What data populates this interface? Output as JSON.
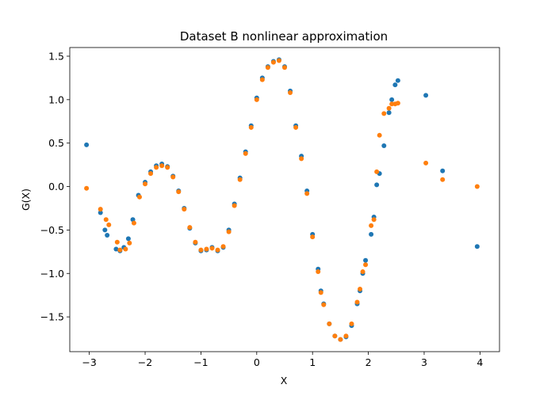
{
  "chart_data": {
    "type": "scatter",
    "title": "Dataset B nonlinear approximation",
    "xlabel": "X",
    "ylabel": "G(X)",
    "xlim": [
      -3.35,
      4.35
    ],
    "ylim": [
      -1.9,
      1.6
    ],
    "xticks": [
      -3,
      -2,
      -1,
      0,
      1,
      2,
      3,
      4
    ],
    "yticks": [
      -1.5,
      -1.0,
      -0.5,
      0.0,
      0.5,
      1.0,
      1.5
    ],
    "xtick_labels": [
      "−3",
      "−2",
      "−1",
      "0",
      "1",
      "2",
      "3",
      "4"
    ],
    "ytick_labels": [
      "−1.5",
      "−1.0",
      "−0.5",
      "0.0",
      "0.5",
      "1.0",
      "1.5"
    ],
    "grid": false,
    "legend": "none",
    "series": [
      {
        "color": "#1f77b4",
        "x": [
          -3.05,
          -2.8,
          -2.72,
          -2.68,
          -2.52,
          -2.45,
          -2.38,
          -2.3,
          -2.22,
          -2.12,
          -2.0,
          -1.9,
          -1.8,
          -1.7,
          -1.6,
          -1.5,
          -1.4,
          -1.3,
          -1.2,
          -1.1,
          -1.0,
          -0.9,
          -0.8,
          -0.7,
          -0.6,
          -0.5,
          -0.4,
          -0.3,
          -0.2,
          -0.1,
          0.0,
          0.1,
          0.2,
          0.3,
          0.4,
          0.5,
          0.6,
          0.7,
          0.8,
          0.9,
          1.0,
          1.1,
          1.15,
          1.2,
          1.3,
          1.4,
          1.5,
          1.6,
          1.7,
          1.8,
          1.85,
          1.9,
          1.95,
          2.05,
          2.1,
          2.15,
          2.2,
          2.28,
          2.37,
          2.42,
          2.48,
          2.53,
          3.03,
          3.33,
          3.95
        ],
        "y": [
          0.48,
          -0.3,
          -0.5,
          -0.56,
          -0.72,
          -0.74,
          -0.7,
          -0.6,
          -0.38,
          -0.1,
          0.05,
          0.17,
          0.24,
          0.26,
          0.23,
          0.12,
          -0.05,
          -0.25,
          -0.48,
          -0.65,
          -0.74,
          -0.73,
          -0.7,
          -0.74,
          -0.7,
          -0.5,
          -0.2,
          0.1,
          0.4,
          0.7,
          1.02,
          1.25,
          1.38,
          1.44,
          1.46,
          1.38,
          1.1,
          0.7,
          0.35,
          -0.05,
          -0.55,
          -0.95,
          -1.2,
          -1.35,
          -1.58,
          -1.72,
          -1.76,
          -1.73,
          -1.6,
          -1.35,
          -1.2,
          -1.0,
          -0.85,
          -0.55,
          -0.35,
          0.02,
          0.15,
          0.47,
          0.85,
          1.0,
          1.17,
          1.22,
          1.05,
          0.18,
          -0.69
        ]
      },
      {
        "color": "#ff7f0e",
        "x": [
          -3.05,
          -2.8,
          -2.7,
          -2.65,
          -2.5,
          -2.45,
          -2.35,
          -2.28,
          -2.2,
          -2.1,
          -2.0,
          -1.9,
          -1.8,
          -1.7,
          -1.6,
          -1.5,
          -1.4,
          -1.3,
          -1.2,
          -1.1,
          -1.0,
          -0.9,
          -0.8,
          -0.7,
          -0.6,
          -0.5,
          -0.4,
          -0.3,
          -0.2,
          -0.1,
          0.0,
          0.1,
          0.2,
          0.3,
          0.4,
          0.5,
          0.6,
          0.7,
          0.8,
          0.9,
          1.0,
          1.1,
          1.15,
          1.2,
          1.3,
          1.4,
          1.5,
          1.6,
          1.7,
          1.8,
          1.85,
          1.9,
          1.95,
          2.05,
          2.1,
          2.15,
          2.2,
          2.28,
          2.37,
          2.42,
          2.48,
          2.53,
          3.03,
          3.33,
          3.95
        ],
        "y": [
          -0.02,
          -0.26,
          -0.38,
          -0.44,
          -0.64,
          -0.73,
          -0.72,
          -0.65,
          -0.42,
          -0.12,
          0.03,
          0.15,
          0.22,
          0.24,
          0.22,
          0.11,
          -0.06,
          -0.26,
          -0.47,
          -0.64,
          -0.73,
          -0.72,
          -0.71,
          -0.73,
          -0.69,
          -0.52,
          -0.22,
          0.08,
          0.38,
          0.68,
          1.0,
          1.23,
          1.37,
          1.43,
          1.45,
          1.37,
          1.08,
          0.68,
          0.32,
          -0.08,
          -0.58,
          -0.98,
          -1.22,
          -1.36,
          -1.58,
          -1.72,
          -1.76,
          -1.72,
          -1.58,
          -1.33,
          -1.18,
          -0.98,
          -0.9,
          -0.45,
          -0.38,
          0.17,
          0.59,
          0.84,
          0.9,
          0.95,
          0.95,
          0.96,
          0.27,
          0.08,
          0.0
        ]
      }
    ]
  }
}
